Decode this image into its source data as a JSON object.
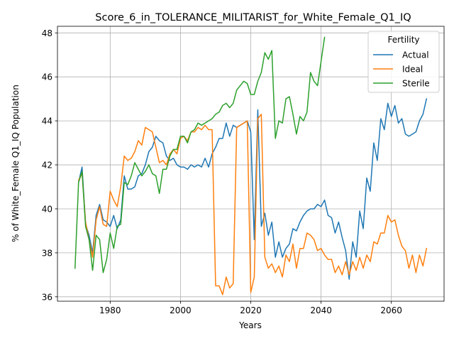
{
  "chart_data": {
    "type": "line",
    "title": "Score_6_in_TOLERANCE_MILITARIST_for_White_Female_Q1_IQ",
    "xlabel": "Years",
    "ylabel": "% of White_Female Q1_IQ Population",
    "xlim": [
      1965,
      2075
    ],
    "ylim": [
      35.8,
      48.3
    ],
    "xticks": [
      1980,
      2000,
      2020,
      2040,
      2060
    ],
    "yticks": [
      36,
      38,
      40,
      42,
      44,
      46,
      48
    ],
    "grid": true,
    "legend": {
      "title": "Fertility",
      "placement": "top-right"
    },
    "colors": {
      "Actual": "#1f77b4",
      "Ideal": "#ff7f0e",
      "Sterile": "#2ca02c"
    },
    "x": [
      1970,
      1971,
      1972,
      1973,
      1974,
      1975,
      1976,
      1977,
      1978,
      1979,
      1980,
      1981,
      1982,
      1983,
      1984,
      1985,
      1986,
      1987,
      1988,
      1989,
      1990,
      1991,
      1992,
      1993,
      1994,
      1995,
      1996,
      1997,
      1998,
      1999,
      2000,
      2001,
      2002,
      2003,
      2004,
      2005,
      2006,
      2007,
      2008,
      2009,
      2010,
      2011,
      2012,
      2013,
      2014,
      2015,
      2016,
      2017,
      2018,
      2019,
      2020,
      2021,
      2022,
      2023,
      2024,
      2025,
      2026,
      2027,
      2028,
      2029,
      2030,
      2031,
      2032,
      2033,
      2034,
      2035,
      2036,
      2037,
      2038,
      2039,
      2040,
      2041,
      2042,
      2043,
      2044,
      2045,
      2046,
      2047,
      2048,
      2049,
      2050,
      2051,
      2052,
      2053,
      2054,
      2055,
      2056,
      2057,
      2058,
      2059,
      2060,
      2061,
      2062,
      2063,
      2064,
      2065,
      2066,
      2067,
      2068,
      2069,
      2070
    ],
    "series": [
      {
        "name": "Actual",
        "values": [
          null,
          41.2,
          41.9,
          39.3,
          38.8,
          38.0,
          39.7,
          40.2,
          39.5,
          39.4,
          39.2,
          39.7,
          39.1,
          39.5,
          41.5,
          40.9,
          40.9,
          41.0,
          41.5,
          41.6,
          42.0,
          42.6,
          42.8,
          43.3,
          43.1,
          43.0,
          42.4,
          42.2,
          42.3,
          42.0,
          41.9,
          41.9,
          41.8,
          42.0,
          41.9,
          42.0,
          41.9,
          42.3,
          41.9,
          42.5,
          42.8,
          43.2,
          43.2,
          43.9,
          43.3,
          43.8,
          43.7,
          43.8,
          43.9,
          44.0,
          43.5,
          38.6,
          44.5,
          39.2,
          39.8,
          38.8,
          39.4,
          37.8,
          38.5,
          37.8,
          38.2,
          38.4,
          39.1,
          39.0,
          39.4,
          39.7,
          39.9,
          40.0,
          40.0,
          40.2,
          40.1,
          40.4,
          39.7,
          39.6,
          38.9,
          39.4,
          38.7,
          38.1,
          36.8,
          38.5,
          37.8,
          39.9,
          39.1,
          41.4,
          40.8,
          43.0,
          42.2,
          44.1,
          43.6,
          44.8,
          44.2,
          44.7,
          43.9,
          44.1,
          43.4,
          43.3,
          43.4,
          43.5,
          44.0,
          44.3,
          45.0
        ]
      },
      {
        "name": "Ideal",
        "values": [
          null,
          41.3,
          41.6,
          39.4,
          38.6,
          37.8,
          39.5,
          40.1,
          39.3,
          39.2,
          40.8,
          40.4,
          40.1,
          41.0,
          42.4,
          42.2,
          42.3,
          42.6,
          43.1,
          42.9,
          43.7,
          43.6,
          43.5,
          42.8,
          42.1,
          42.2,
          42.0,
          42.5,
          42.7,
          42.5,
          43.2,
          43.3,
          43.1,
          43.5,
          43.5,
          43.7,
          43.6,
          43.8,
          43.6,
          43.6,
          36.5,
          36.5,
          36.1,
          36.9,
          36.4,
          36.6,
          43.7,
          43.8,
          43.9,
          44.0,
          36.2,
          36.9,
          44.1,
          44.3,
          37.8,
          37.3,
          37.5,
          37.1,
          37.4,
          36.9,
          37.9,
          37.6,
          38.4,
          37.3,
          38.2,
          38.2,
          38.9,
          38.8,
          38.6,
          38.1,
          38.2,
          37.9,
          37.7,
          37.7,
          37.1,
          37.4,
          37.0,
          37.6,
          37.0,
          37.6,
          37.2,
          37.8,
          37.3,
          37.9,
          37.6,
          38.5,
          38.4,
          38.9,
          38.9,
          39.7,
          39.4,
          39.5,
          38.8,
          38.3,
          38.1,
          37.3,
          37.9,
          37.1,
          37.9,
          37.4,
          38.2
        ]
      },
      {
        "name": "Sterile",
        "values": [
          37.3,
          41.2,
          41.7,
          39.2,
          38.6,
          37.2,
          38.8,
          38.6,
          37.1,
          37.7,
          38.9,
          38.2,
          39.2,
          39.3,
          41.2,
          41.1,
          41.5,
          42.1,
          41.8,
          41.5,
          41.7,
          42.0,
          41.6,
          41.5,
          40.7,
          41.8,
          41.8,
          42.4,
          42.7,
          42.7,
          43.3,
          43.3,
          43.0,
          43.5,
          43.6,
          43.9,
          43.8,
          43.9,
          44.0,
          44.1,
          44.3,
          44.4,
          44.7,
          44.8,
          44.6,
          44.8,
          45.4,
          45.6,
          45.8,
          45.7,
          45.2,
          45.2,
          45.8,
          46.2,
          47.1,
          46.8,
          47.2,
          43.2,
          44.0,
          43.9,
          45.0,
          45.1,
          44.3,
          43.4,
          44.2,
          44.0,
          44.4,
          46.2,
          45.8,
          45.6,
          46.7,
          47.8,
          null,
          null,
          null,
          null,
          null,
          null,
          null,
          null,
          null,
          null,
          null,
          null,
          null,
          null,
          null,
          null,
          null,
          null,
          null,
          null,
          null,
          null,
          null,
          null,
          null,
          null,
          null,
          null,
          null
        ]
      }
    ]
  }
}
